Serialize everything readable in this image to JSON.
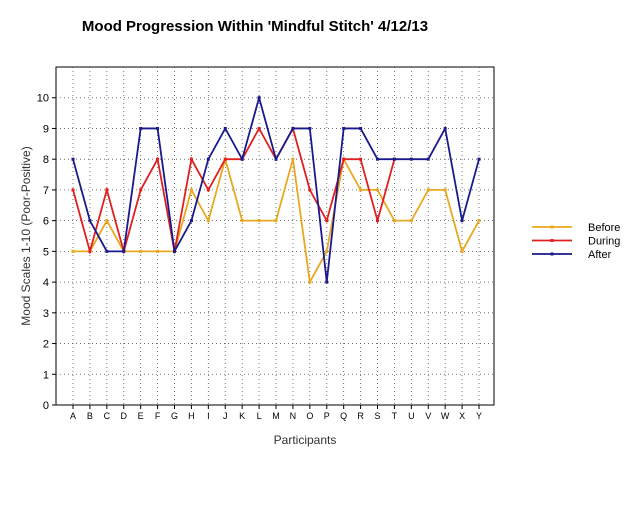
{
  "chart_data": {
    "type": "line",
    "title": "Mood Progression Within 'Mindful Stitch' 4/12/13",
    "xlabel": "Participants",
    "ylabel": "Mood Scales 1-10 (Poor-Positive)",
    "ylim": [
      0,
      11
    ],
    "yticks": [
      0,
      1,
      2,
      3,
      4,
      5,
      6,
      7,
      8,
      9,
      10
    ],
    "grid": true,
    "legend_position": "right",
    "categories": [
      "A",
      "B",
      "C",
      "D",
      "E",
      "F",
      "G",
      "H",
      "I",
      "J",
      "K",
      "L",
      "M",
      "N",
      "O",
      "P",
      "Q",
      "R",
      "S",
      "T",
      "U",
      "V",
      "W",
      "X",
      "Y"
    ],
    "series": [
      {
        "name": "Before",
        "color": "#e8a820",
        "values": [
          5,
          5,
          6,
          5,
          5,
          5,
          5,
          7,
          6,
          8,
          6,
          6,
          6,
          8,
          4,
          5,
          8,
          7,
          7,
          6,
          6,
          7,
          7,
          5,
          6
        ]
      },
      {
        "name": "During",
        "color": "#e02020",
        "values": [
          7,
          5,
          7,
          5,
          7,
          8,
          5,
          8,
          7,
          8,
          8,
          9,
          8,
          9,
          7,
          6,
          8,
          8,
          6,
          8,
          null,
          null,
          null,
          null,
          null
        ]
      },
      {
        "name": "After",
        "color": "#1a1a8c",
        "values": [
          8,
          6,
          5,
          5,
          9,
          9,
          5,
          6,
          8,
          9,
          8,
          10,
          8,
          9,
          9,
          4,
          9,
          9,
          8,
          8,
          8,
          8,
          9,
          6,
          8
        ]
      }
    ]
  }
}
